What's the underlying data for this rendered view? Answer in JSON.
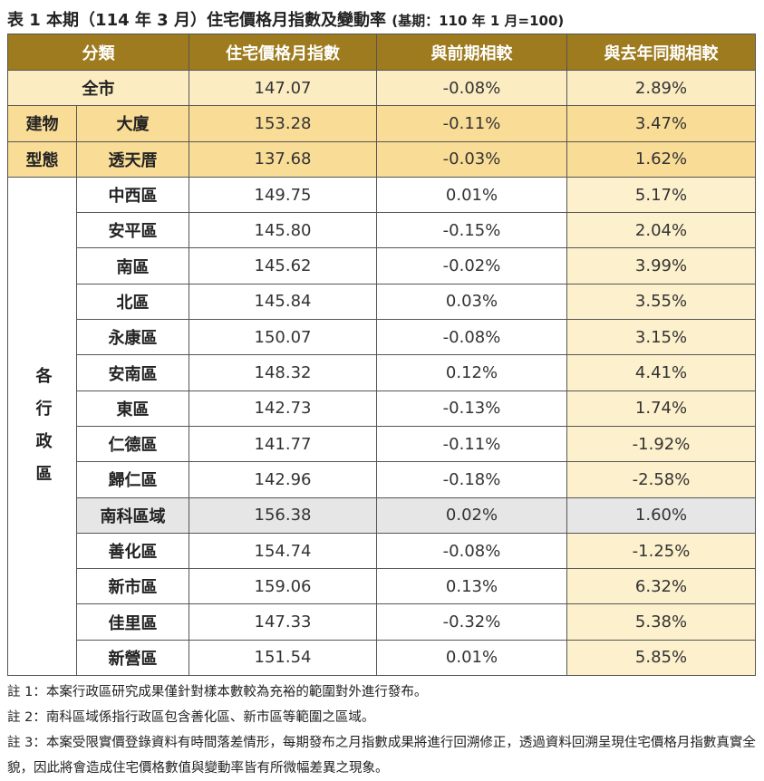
{
  "title": "表 1 本期（114 年 3 月）住宅價格月指數及變動率",
  "base_period": "(基期：110 年 1 月=100)",
  "table": {
    "header": [
      "分類",
      "住宅價格月指數",
      "與前期相較",
      "與去年同期相較"
    ],
    "summary": [
      "全市",
      "147.07",
      "-0.08%",
      "2.89%"
    ],
    "building_type": {
      "label": [
        "建物",
        "型態"
      ],
      "rows": [
        [
          "大廈",
          "153.28",
          "-0.11%",
          "3.47%"
        ],
        [
          "透天厝",
          "137.68",
          "-0.03%",
          "1.62%"
        ]
      ]
    },
    "districts": {
      "label": "各行政區",
      "rows": [
        [
          "中西區",
          "149.75",
          "0.01%",
          "5.17%"
        ],
        [
          "安平區",
          "145.80",
          "-0.15%",
          "2.04%"
        ],
        [
          "南區",
          "145.62",
          "-0.02%",
          "3.99%"
        ],
        [
          "北區",
          "145.84",
          "0.03%",
          "3.55%"
        ],
        [
          "永康區",
          "150.07",
          "-0.08%",
          "3.15%"
        ],
        [
          "安南區",
          "148.32",
          "0.12%",
          "4.41%"
        ],
        [
          "東區",
          "142.73",
          "-0.13%",
          "1.74%"
        ],
        [
          "仁德區",
          "141.77",
          "-0.11%",
          "-1.92%"
        ],
        [
          "歸仁區",
          "142.96",
          "-0.18%",
          "-2.58%"
        ],
        [
          "南科區域",
          "156.38",
          "0.02%",
          "1.60%"
        ],
        [
          "善化區",
          "154.74",
          "-0.08%",
          "-1.25%"
        ],
        [
          "新市區",
          "159.06",
          "0.13%",
          "6.32%"
        ],
        [
          "佳里區",
          "147.33",
          "-0.32%",
          "5.38%"
        ],
        [
          "新營區",
          "151.54",
          "0.01%",
          "5.85%"
        ]
      ]
    }
  },
  "notes": [
    "註 1：本案行政區研究成果僅針對樣本數較為充裕的範圍對外進行發布。",
    "註 2：南科區域係指行政區包含善化區、新市區等範圍之區域。",
    "註 3：本案受限實價登錄資料有時間落差情形，每期發布之月指數成果將進行回溯修正，透過資料回溯呈現住宅價格月指數真實全貌，因此將會造成住宅價格數值與變動率皆有所微幅差異之現象。"
  ]
}
